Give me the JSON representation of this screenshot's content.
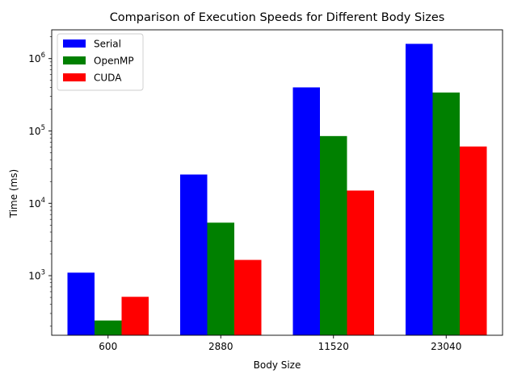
{
  "chart_data": {
    "type": "bar",
    "title": "Comparison of Execution Speeds for Different Body Sizes",
    "xlabel": "Body Size",
    "ylabel": "Time (ms)",
    "yscale": "log",
    "ylim": [
      150,
      2500000
    ],
    "categories": [
      "600",
      "2880",
      "11520",
      "23040"
    ],
    "series": [
      {
        "name": "Serial",
        "color": "#0000ff",
        "values": [
          1100,
          25000,
          400000,
          1600000
        ]
      },
      {
        "name": "OpenMP",
        "color": "#008000",
        "values": [
          240,
          5400,
          85000,
          340000
        ]
      },
      {
        "name": "CUDA",
        "color": "#ff0000",
        "values": [
          510,
          1650,
          15000,
          61000
        ]
      }
    ],
    "y_ticks": [
      {
        "value": 1000,
        "base": "10",
        "exp": "3"
      },
      {
        "value": 10000,
        "base": "10",
        "exp": "4"
      },
      {
        "value": 100000,
        "base": "10",
        "exp": "5"
      },
      {
        "value": 1000000,
        "base": "10",
        "exp": "6"
      }
    ],
    "legend_position": "top-left",
    "grid": false
  }
}
